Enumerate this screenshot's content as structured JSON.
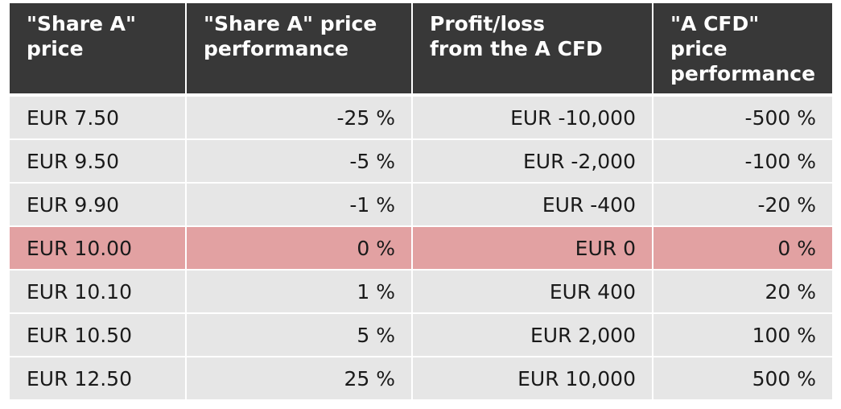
{
  "table": {
    "headers": [
      "\"Share A\"\nprice",
      "\"Share A\" price\nperformance",
      "Profit/loss\nfrom the A CFD",
      "\"A CFD\"\nprice\nperformance"
    ],
    "rows": [
      [
        "EUR 7.50",
        "-25 %",
        "EUR -10,000",
        "-500 %"
      ],
      [
        "EUR 9.50",
        "-5 %",
        "EUR -2,000",
        "-100 %"
      ],
      [
        "EUR 9.90",
        "-1 %",
        "EUR -400",
        "-20 %"
      ],
      [
        "EUR 10.00",
        "0 %",
        "EUR 0",
        "0 %"
      ],
      [
        "EUR 10.10",
        "1 %",
        "EUR 400",
        "20 %"
      ],
      [
        "EUR 10.50",
        "5 %",
        "EUR 2,000",
        "100 %"
      ],
      [
        "EUR 12.50",
        "25 %",
        "EUR 10,000",
        "500 %"
      ]
    ],
    "highlight_row": 3,
    "colors": {
      "header_bg": "#383838",
      "header_text": "#ffffff",
      "row_bg": "#e6e6e6",
      "highlight_bg": "#e2a1a2"
    }
  }
}
